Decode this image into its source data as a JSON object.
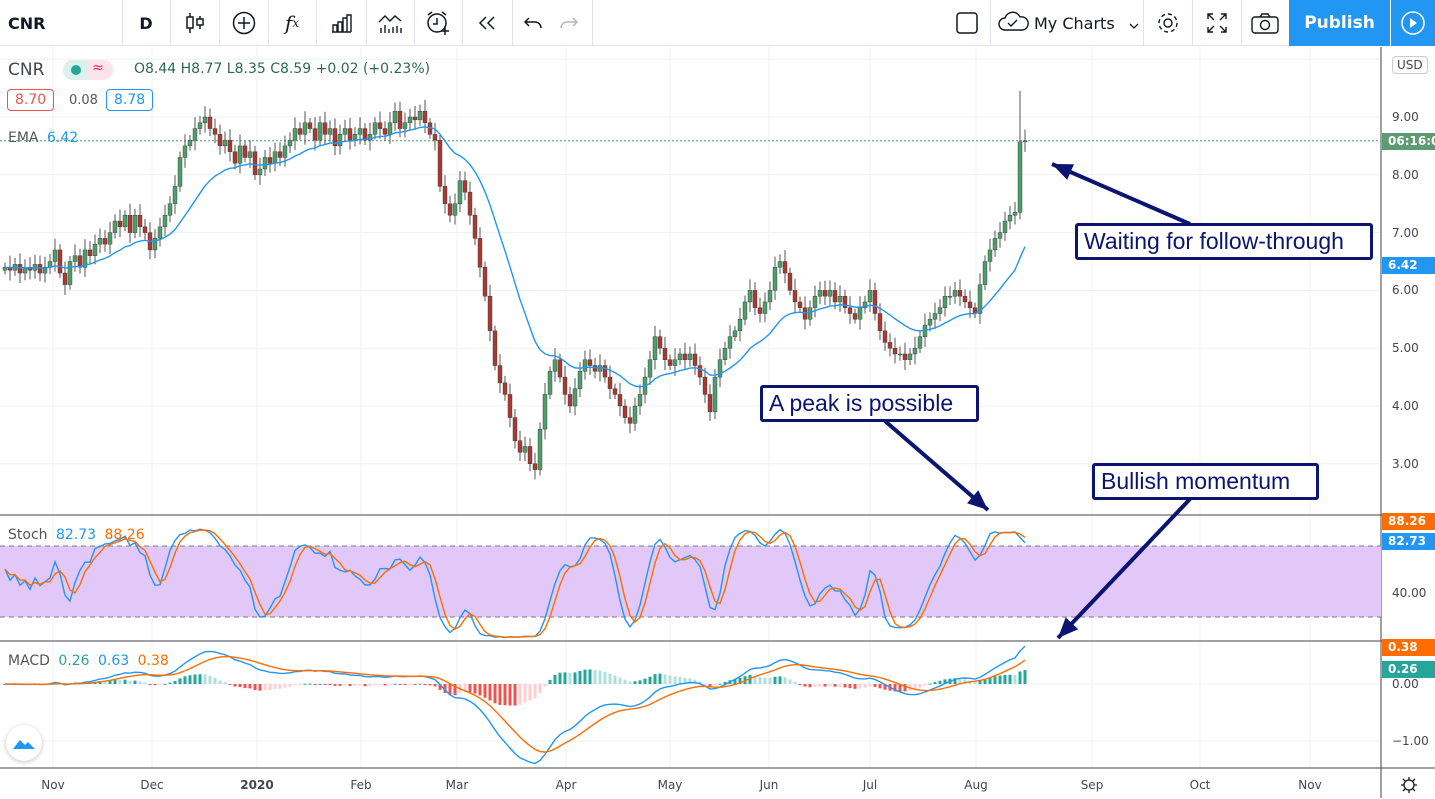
{
  "toolbar": {
    "symbol": "CNR",
    "interval": "D",
    "my_charts": "My Charts",
    "publish": "Publish",
    "icons": [
      "candlestick-icon",
      "add-compare-icon",
      "indicators-fx-icon",
      "bar-chart-icon",
      "templates-icon",
      "alert-icon",
      "replay-icon",
      "undo-icon",
      "redo-icon",
      "layout-square-icon",
      "cloud-icon",
      "chevron-down-icon",
      "gear-icon",
      "fullscreen-icon",
      "camera-icon",
      "play-icon"
    ]
  },
  "legend": {
    "symbol": "CNR",
    "ohlc": "O8.44 H8.77 L8.35 C8.59 +0.02 (+0.23%)",
    "bid": "8.70",
    "spread": "0.08",
    "ask": "8.78",
    "ema_label": "EMA",
    "ema_value": "6.42",
    "stoch_label": "Stoch",
    "stoch_k": "82.73",
    "stoch_d": "88.26",
    "macd_label": "MACD",
    "macd_hist": "0.26",
    "macd_line": "0.63",
    "macd_signal": "0.38"
  },
  "price_axis": {
    "currency": "USD",
    "ticks": [
      "9.00",
      "8.00",
      "7.00",
      "6.00",
      "5.00",
      "4.00",
      "3.00"
    ],
    "countdown": "06:16:0",
    "ema_tag": "6.42"
  },
  "stoch_axis": {
    "ticks": [
      "40.00"
    ],
    "d_tag": "88.26",
    "k_tag": "82.73"
  },
  "macd_axis": {
    "ticks": [
      "0.00",
      "−1.00"
    ],
    "signal_tag": "0.38",
    "hist_tag": "0.26"
  },
  "time_axis": [
    "Nov",
    "Dec",
    "2020",
    "Feb",
    "Mar",
    "Apr",
    "May",
    "Jun",
    "Jul",
    "Aug",
    "Sep",
    "Oct",
    "Nov"
  ],
  "annotations": {
    "follow": "Waiting for follow-through",
    "peak": "A peak is possible",
    "bullish": "Bullish momentum"
  },
  "colors": {
    "up": "#26a69a",
    "up_candle": "#4f9e6a",
    "down": "#a83a33",
    "ema": "#2196f3",
    "stoch_k": "#2196f3",
    "stoch_d": "#ff6d00",
    "stoch_band": "#e1c8f8",
    "annotation": "#0b1470",
    "publish": "#2196f3"
  },
  "chart_data": {
    "type": "candlestick",
    "ylim": [
      2.3,
      10
    ],
    "stoch_bands": [
      20,
      80
    ],
    "closes": [
      6.4,
      6.35,
      6.45,
      6.3,
      6.4,
      6.35,
      6.45,
      6.3,
      6.4,
      6.5,
      6.7,
      6.3,
      6.1,
      6.5,
      6.6,
      6.4,
      6.7,
      6.6,
      6.8,
      6.9,
      6.8,
      7.0,
      7.2,
      7.1,
      7.3,
      7.0,
      7.3,
      7.1,
      7.0,
      6.7,
      6.9,
      7.1,
      7.3,
      7.5,
      7.8,
      8.3,
      8.5,
      8.6,
      8.8,
      8.9,
      9.0,
      8.8,
      8.7,
      8.5,
      8.6,
      8.4,
      8.2,
      8.5,
      8.3,
      8.4,
      8.0,
      8.1,
      8.3,
      8.2,
      8.4,
      8.3,
      8.5,
      8.6,
      8.8,
      8.7,
      8.9,
      8.8,
      8.6,
      8.9,
      8.7,
      8.8,
      8.5,
      8.7,
      8.8,
      8.6,
      8.7,
      8.8,
      8.6,
      8.7,
      8.9,
      8.8,
      8.7,
      8.9,
      9.1,
      8.8,
      8.9,
      9.0,
      8.95,
      9.1,
      8.9,
      8.7,
      8.6,
      7.8,
      7.5,
      7.3,
      7.5,
      7.9,
      7.7,
      7.3,
      6.9,
      6.4,
      5.9,
      5.3,
      4.7,
      4.4,
      4.2,
      3.8,
      3.4,
      3.2,
      3.3,
      3.0,
      2.9,
      3.6,
      4.2,
      4.6,
      4.8,
      4.5,
      4.2,
      4.0,
      4.3,
      4.6,
      4.8,
      4.7,
      4.6,
      4.7,
      4.5,
      4.3,
      4.2,
      4.0,
      3.8,
      3.7,
      4.0,
      4.2,
      4.5,
      4.8,
      5.2,
      5.0,
      4.8,
      4.7,
      4.8,
      4.9,
      4.8,
      4.9,
      4.7,
      4.5,
      4.2,
      3.9,
      4.5,
      4.8,
      5.0,
      5.2,
      5.3,
      5.5,
      5.8,
      6.0,
      5.7,
      5.6,
      5.8,
      6.0,
      6.4,
      6.5,
      6.3,
      6.0,
      5.8,
      5.7,
      5.5,
      5.7,
      5.9,
      6.0,
      5.9,
      6.0,
      5.8,
      5.9,
      5.7,
      5.6,
      5.5,
      5.7,
      5.8,
      6.0,
      5.6,
      5.3,
      5.1,
      5.0,
      4.9,
      4.9,
      4.8,
      4.9,
      5.0,
      5.2,
      5.4,
      5.5,
      5.6,
      5.7,
      5.9,
      5.9,
      6.0,
      5.9,
      5.8,
      5.7,
      5.6,
      6.1,
      6.5,
      6.7,
      6.9,
      7.0,
      7.2,
      7.3,
      7.35,
      8.57,
      8.59
    ]
  }
}
